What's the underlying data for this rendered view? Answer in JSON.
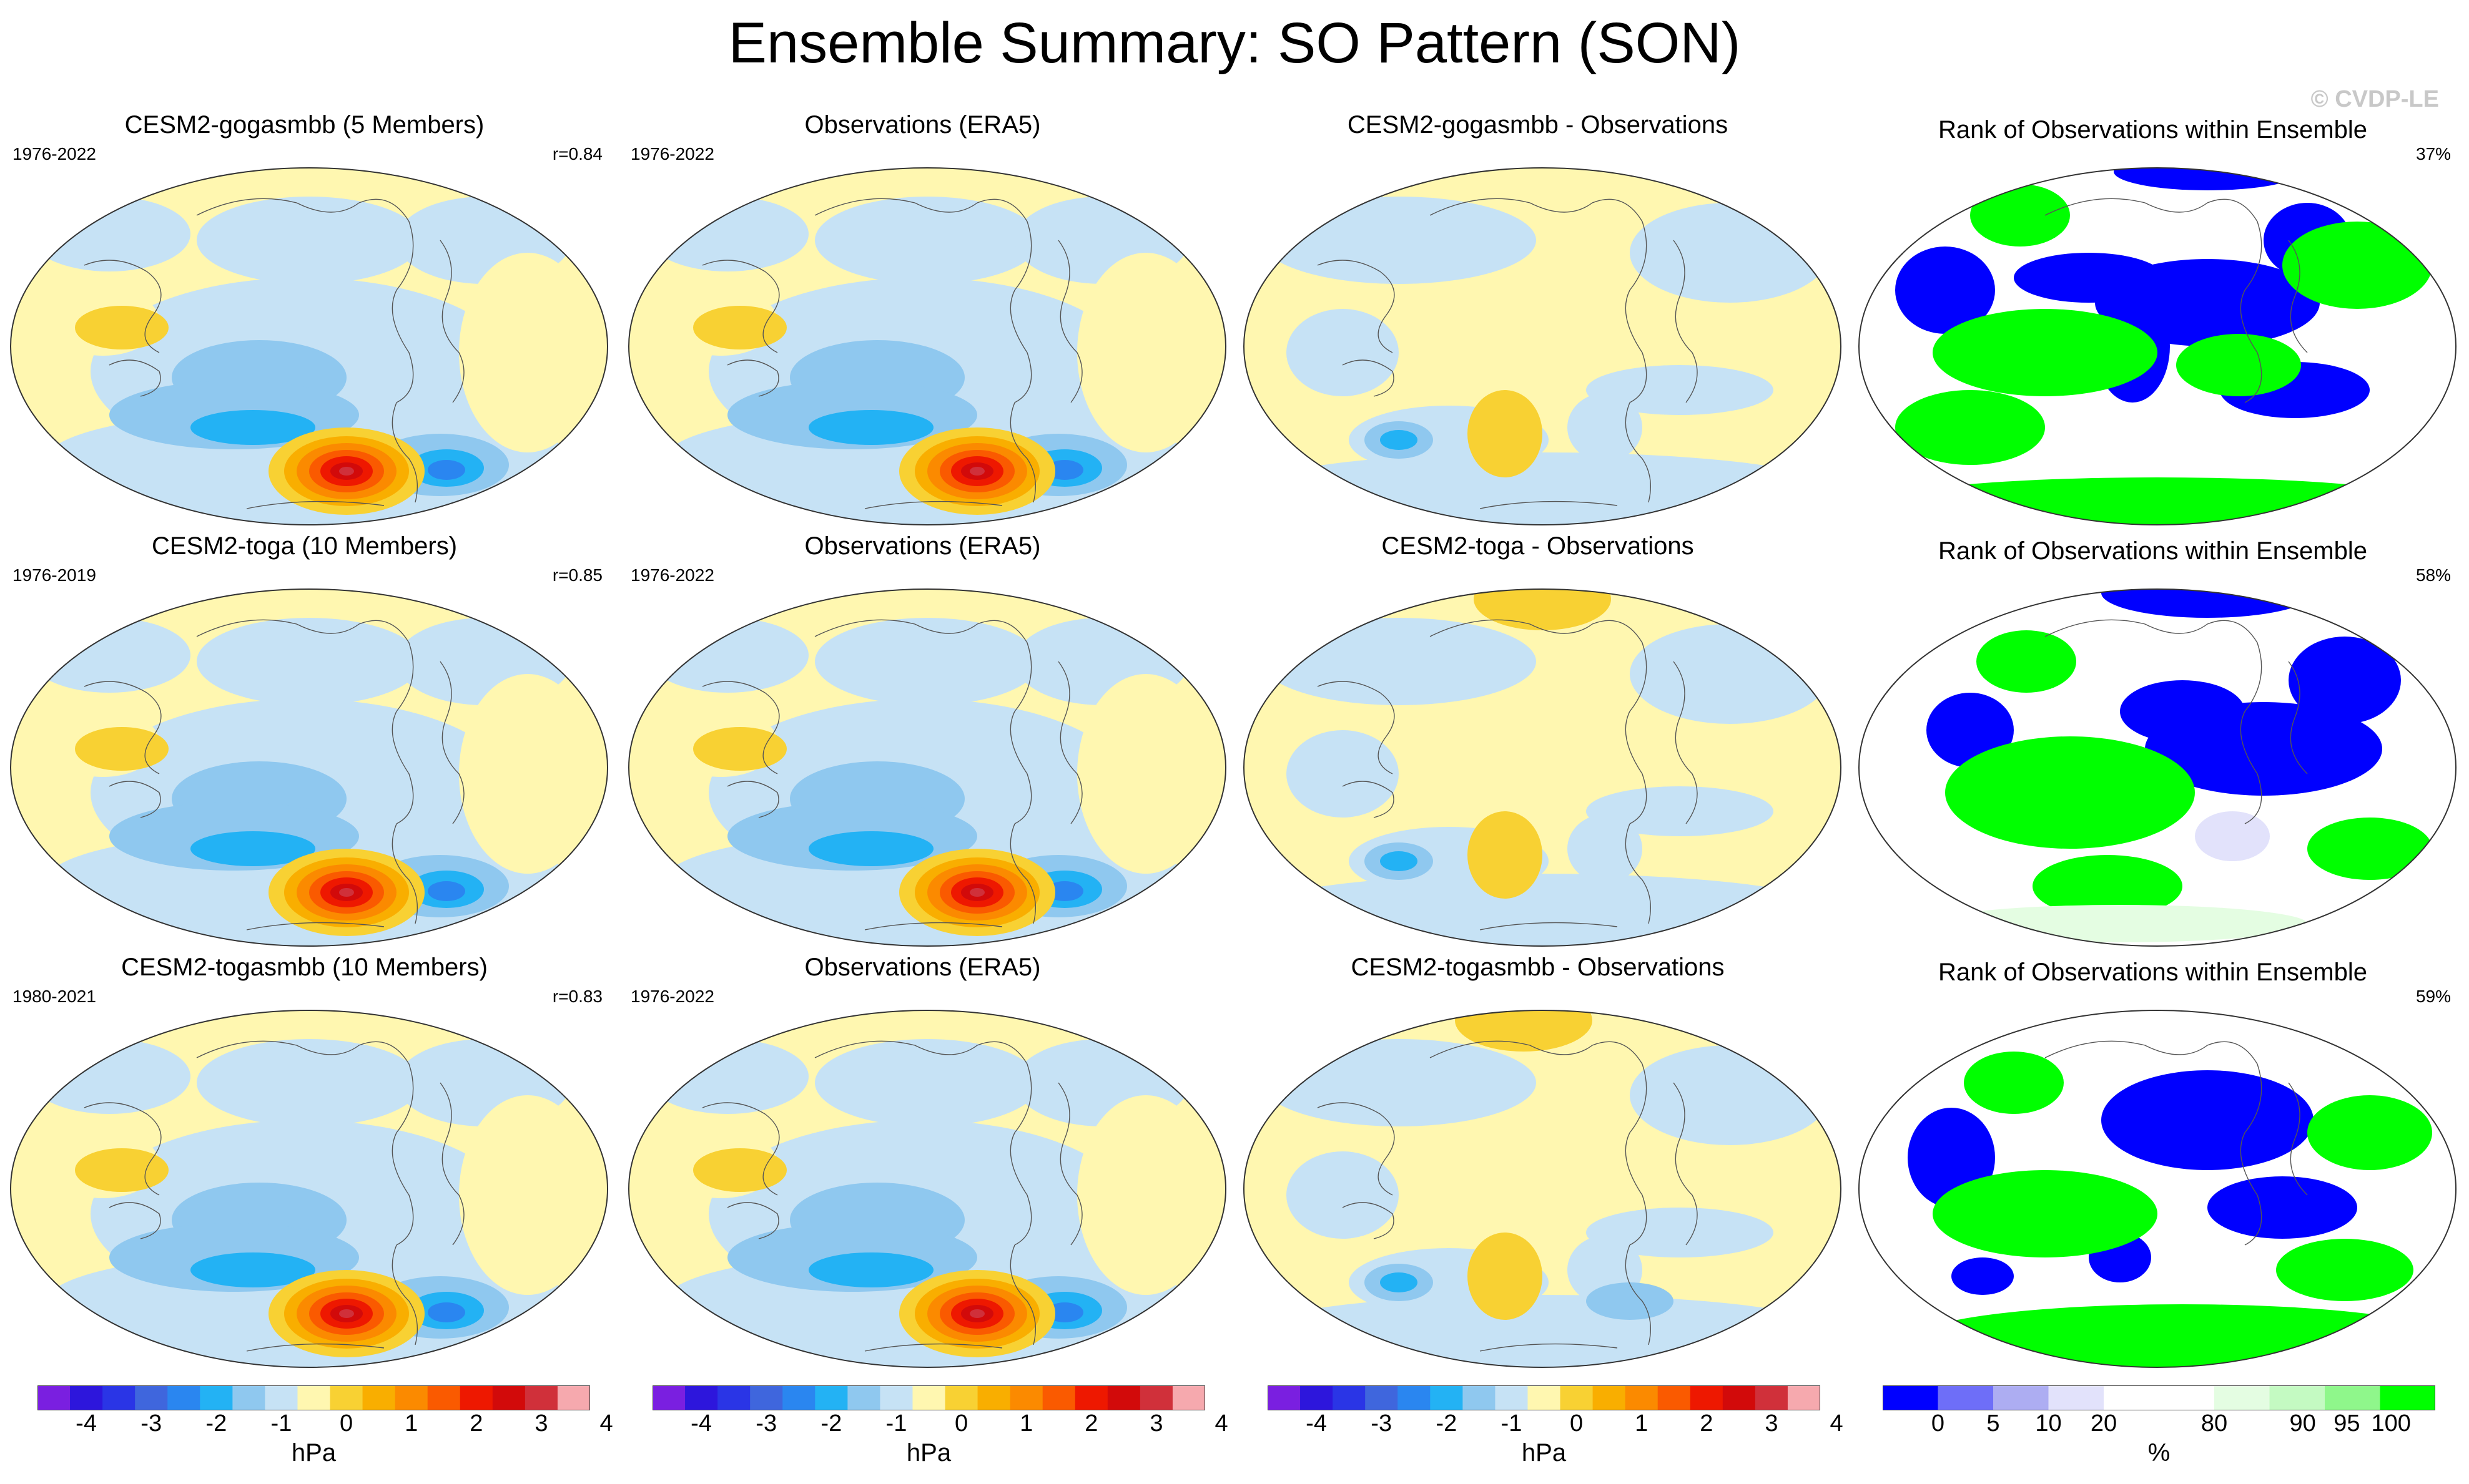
{
  "figure": {
    "title": "Ensemble Summary: SO Pattern (SON)",
    "copyright": "© CVDP-LE"
  },
  "chart_data": {
    "type": "heatmap",
    "title": "Ensemble Summary: SO Pattern (SON)",
    "rows": [
      {
        "model": {
          "title": "CESM2-gogasmbb (5 Members)",
          "years": "1976-2022",
          "r": "r=0.84"
        },
        "obs": {
          "title": "Observations (ERA5)",
          "years": "1976-2022"
        },
        "diff": {
          "title": "CESM2-gogasmbb - Observations"
        },
        "rank": {
          "title": "Rank of Observations within Ensemble",
          "pct": "37%"
        }
      },
      {
        "model": {
          "title": "CESM2-toga (10 Members)",
          "years": "1976-2019",
          "r": "r=0.85"
        },
        "obs": {
          "title": "Observations (ERA5)",
          "years": "1976-2022"
        },
        "diff": {
          "title": "CESM2-toga - Observations"
        },
        "rank": {
          "title": "Rank of Observations within Ensemble",
          "pct": "58%"
        }
      },
      {
        "model": {
          "title": "CESM2-togasmbb (10 Members)",
          "years": "1980-2021",
          "r": "r=0.83"
        },
        "obs": {
          "title": "Observations (ERA5)",
          "years": "1976-2022"
        },
        "diff": {
          "title": "CESM2-togasmbb - Observations"
        },
        "rank": {
          "title": "Rank of Observations within Ensemble",
          "pct": "59%"
        }
      }
    ],
    "hpa_colorbar": {
      "unit": "hPa",
      "colors": [
        "#7a1fe0",
        "#2d16dc",
        "#2a35e6",
        "#3f66dd",
        "#2a86f0",
        "#23b2f4",
        "#8fc8ef",
        "#c6e2f5",
        "#fff7b0",
        "#f8d133",
        "#f9ae00",
        "#fb8a00",
        "#fa5a00",
        "#ee1800",
        "#d20a0a",
        "#d0303a",
        "#f6a9ae"
      ],
      "ticks": [
        {
          "label": "-4",
          "pos": 1.5
        },
        {
          "label": "-3",
          "pos": 3.5
        },
        {
          "label": "-2",
          "pos": 5.5
        },
        {
          "label": "-1",
          "pos": 7.5
        },
        {
          "label": "0",
          "pos": 9.5
        },
        {
          "label": "1",
          "pos": 11.5
        },
        {
          "label": "2",
          "pos": 13.5
        },
        {
          "label": "3",
          "pos": 15.5
        },
        {
          "label": "4",
          "pos": 17.5
        }
      ]
    },
    "rank_colorbar": {
      "unit": "%",
      "colors": [
        "#0000ff",
        "#6e6ef8",
        "#adadf2",
        "#e2e2fb",
        "#ffffff",
        "#ffffff",
        "#e4fde2",
        "#c4fac2",
        "#8ff78b",
        "#00ff00"
      ],
      "ticks": [
        {
          "label": "0",
          "pos": 1
        },
        {
          "label": "5",
          "pos": 2
        },
        {
          "label": "10",
          "pos": 3
        },
        {
          "label": "20",
          "pos": 4
        },
        {
          "label": "80",
          "pos": 6
        },
        {
          "label": "90",
          "pos": 7.6
        },
        {
          "label": "95",
          "pos": 8.4
        },
        {
          "label": "100",
          "pos": 9.2
        }
      ]
    }
  }
}
